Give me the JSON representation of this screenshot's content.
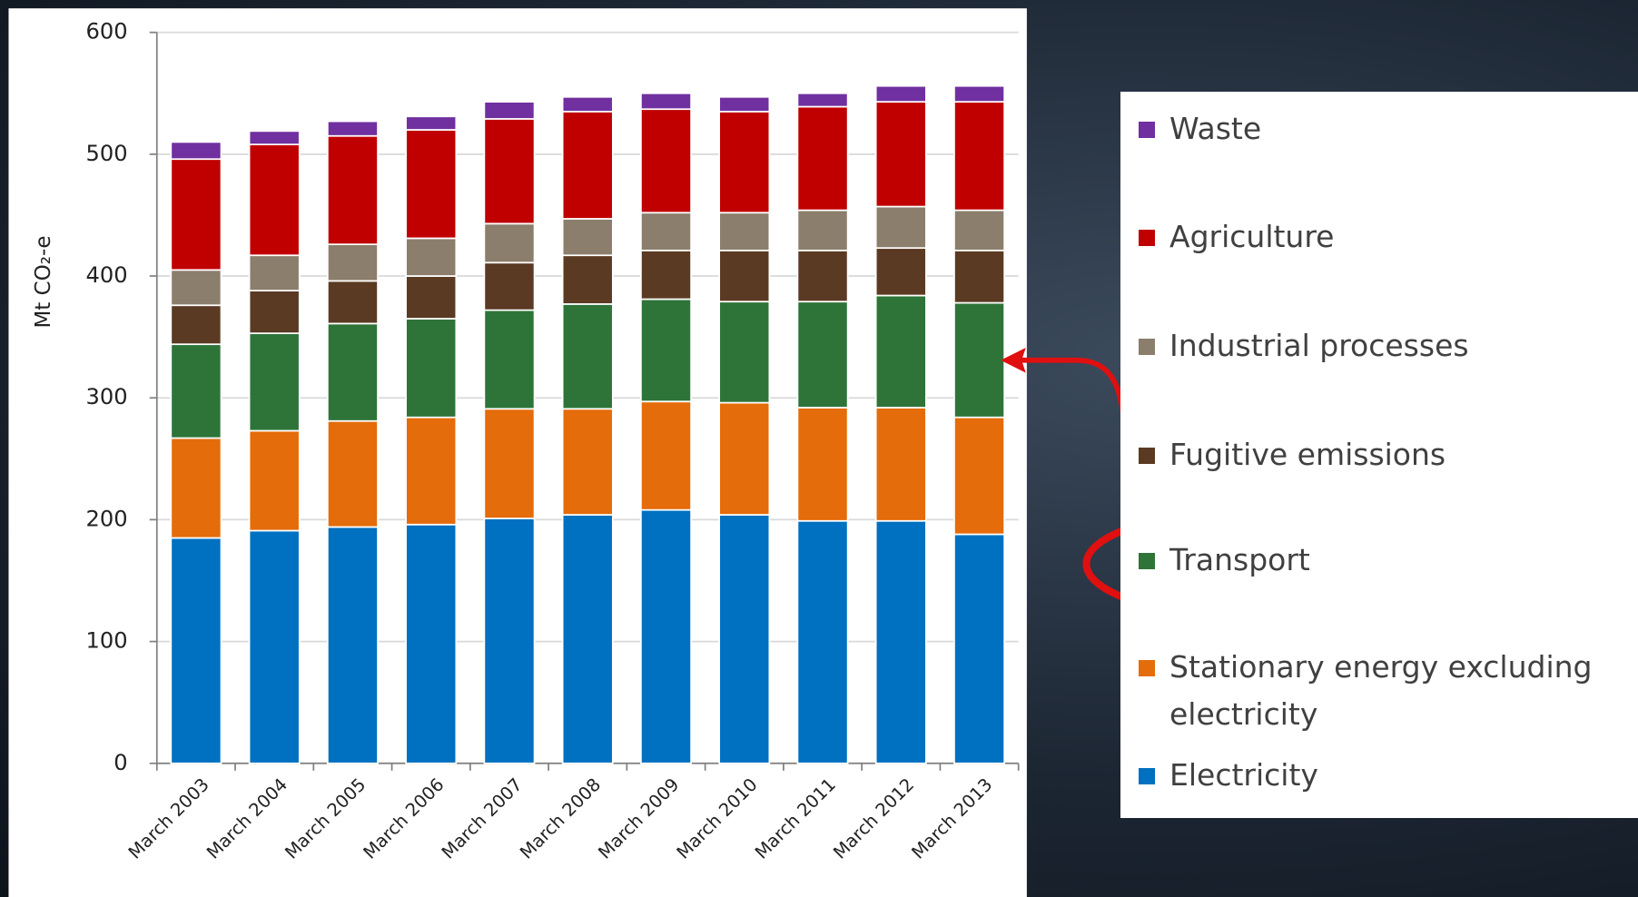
{
  "chart_data": {
    "type": "bar",
    "stacked": true,
    "ylabel": "Mt CO₂-e",
    "categories": [
      "March 2003",
      "March 2004",
      "March 2005",
      "March 2006",
      "March 2007",
      "March 2008",
      "March 2009",
      "March 2010",
      "March 2011",
      "March 2012",
      "March 2013"
    ],
    "series": [
      {
        "name": "Electricity",
        "color": "#0070c0",
        "values": [
          185,
          191,
          194,
          196,
          201,
          204,
          208,
          204,
          199,
          199,
          188
        ]
      },
      {
        "name": "Stationary energy excluding electricity",
        "color": "#e46c0a",
        "values": [
          82,
          82,
          87,
          88,
          90,
          87,
          89,
          92,
          93,
          93,
          96
        ]
      },
      {
        "name": "Transport",
        "color": "#2e7439",
        "values": [
          77,
          80,
          80,
          81,
          81,
          86,
          84,
          83,
          87,
          92,
          94
        ]
      },
      {
        "name": "Fugitive emissions",
        "color": "#5b3a23",
        "values": [
          32,
          35,
          35,
          35,
          39,
          40,
          40,
          42,
          42,
          39,
          43
        ]
      },
      {
        "name": "Industrial processes",
        "color": "#8c7e6c",
        "values": [
          29,
          29,
          30,
          31,
          32,
          30,
          31,
          31,
          33,
          34,
          33
        ]
      },
      {
        "name": "Agriculture",
        "color": "#c00000",
        "values": [
          91,
          91,
          89,
          89,
          86,
          88,
          85,
          83,
          85,
          86,
          89
        ]
      },
      {
        "name": "Waste",
        "color": "#7030a0",
        "values": [
          14,
          11,
          12,
          11,
          14,
          12,
          13,
          12,
          11,
          13,
          13
        ]
      }
    ],
    "ylim": [
      0,
      600
    ],
    "yticks": [
      0,
      100,
      200,
      300,
      400,
      500,
      600
    ],
    "grid": true,
    "legend": "right"
  }
}
